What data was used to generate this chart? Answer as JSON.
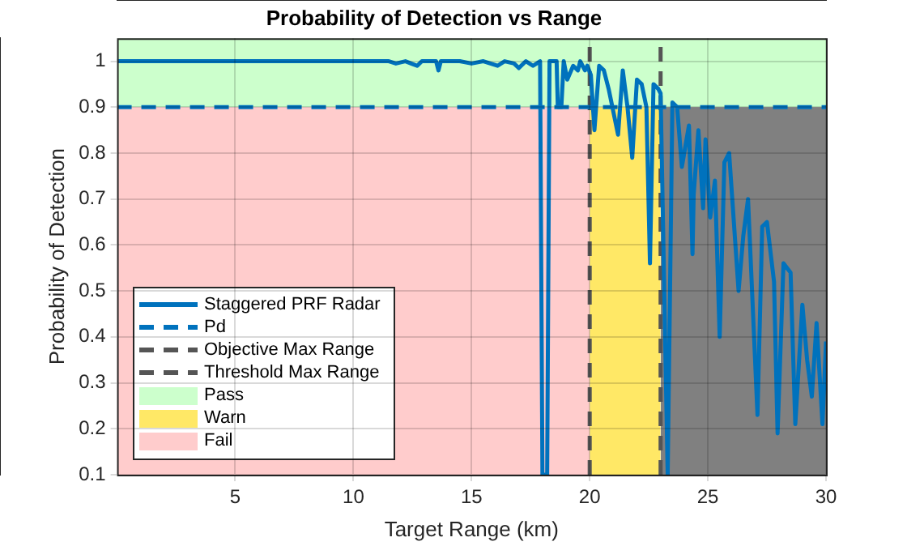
{
  "chart_data": {
    "type": "line",
    "title": "Probability of Detection vs Range",
    "xlabel": "Target Range (km)",
    "ylabel": "Probability of Detection",
    "xlim": [
      0,
      30
    ],
    "xticks": [
      5,
      10,
      15,
      20,
      25,
      30
    ],
    "ylim": [
      0.1,
      1.05
    ],
    "yticks": [
      0.1,
      0.2,
      0.3,
      0.4,
      0.5,
      0.6,
      0.7,
      0.8,
      0.9,
      1
    ],
    "grid": true,
    "legend": "bottom left",
    "marker": "none",
    "series": [
      {
        "name": "Staggered PRF Radar",
        "color": "#0072bd",
        "line_style": "solid",
        "x": [
          0,
          11.5,
          11.8,
          12.2,
          12.7,
          12.9,
          13.5,
          13.6,
          13.7,
          14.5,
          15,
          15.5,
          16.1,
          16.4,
          16.8,
          17,
          17.3,
          17.6,
          17.9,
          18,
          18.2,
          18.3,
          18.6,
          18.65,
          18.8,
          18.9,
          19.05,
          19.3,
          19.5,
          19.6,
          19.8,
          19.9,
          20.05,
          20.2,
          20.4,
          20.6,
          20.8,
          21.2,
          21.4,
          21.6,
          21.8,
          22,
          22.2,
          22.4,
          22.55,
          22.7,
          22.9,
          23,
          23.3,
          23.5,
          23.7,
          23.9,
          24.2,
          24.35,
          24.4,
          24.6,
          24.8,
          24.9,
          25.1,
          25.3,
          25.5,
          25.7,
          25.9,
          26.3,
          26.5,
          26.7,
          27.1,
          27.3,
          27.5,
          27.8,
          27.95,
          28.2,
          28.5,
          28.7,
          29,
          29.2,
          29.4,
          29.6,
          29.85,
          30
        ],
        "values": [
          1,
          1,
          0.995,
          1,
          0.99,
          1,
          1,
          0.98,
          1,
          1,
          0.995,
          1,
          0.99,
          1,
          0.995,
          0.985,
          1,
          0.99,
          1,
          0.1,
          0.1,
          1,
          1,
          0.9,
          0.9,
          1,
          0.96,
          0.99,
          0.98,
          1,
          0.98,
          0.99,
          0.97,
          0.85,
          0.99,
          0.98,
          0.94,
          0.84,
          0.98,
          0.9,
          0.79,
          0.96,
          0.95,
          0.9,
          0.56,
          0.95,
          0.94,
          0.93,
          0.1,
          0.91,
          0.9,
          0.77,
          0.86,
          0.58,
          0.71,
          0.85,
          0.68,
          0.83,
          0.66,
          0.74,
          0.4,
          0.78,
          0.8,
          0.5,
          0.62,
          0.7,
          0.23,
          0.64,
          0.65,
          0.52,
          0.19,
          0.56,
          0.54,
          0.21,
          0.47,
          0.35,
          0.27,
          0.43,
          0.21,
          0.39
        ]
      },
      {
        "name": "Pd",
        "color": "#0072bd",
        "line_style": "dashed",
        "x": [
          0,
          30
        ],
        "values": [
          0.9,
          0.9
        ]
      },
      {
        "name": "Objective Max Range",
        "color": "#555555",
        "line_style": "dashed",
        "x": [
          20,
          20
        ],
        "values": [
          0.1,
          1.05
        ]
      },
      {
        "name": "Threshold Max Range",
        "color": "#555555",
        "line_style": "dashed",
        "x": [
          23,
          23
        ],
        "values": [
          0.1,
          1.05
        ]
      },
      {
        "type": "area",
        "name": "Warn",
        "color": "#ffe866",
        "x": [
          20,
          23
        ],
        "values": [
          0.9,
          0.9
        ]
      },
      {
        "type": "area",
        "name": "Fail",
        "color": "#ffcccc",
        "x": [
          0,
          20
        ],
        "values": [
          0.9,
          0.9
        ]
      },
      {
        "type": "area",
        "color": "#808080",
        "x": [
          23,
          30
        ],
        "values": [
          0.9,
          0.9
        ]
      }
    ],
    "bands": [
      {
        "axis": "y",
        "from": 0.9,
        "to": 1.05,
        "label": "Pass",
        "color": "#ccffcc"
      }
    ]
  }
}
